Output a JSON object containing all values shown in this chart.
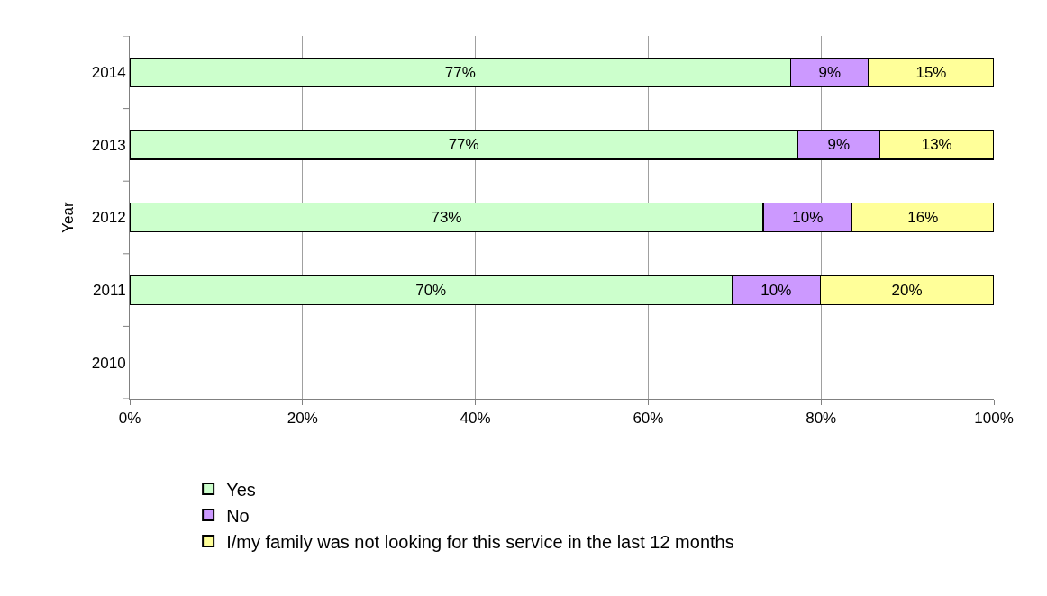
{
  "chart_data": {
    "type": "bar",
    "orientation": "horizontal",
    "stacked": true,
    "ylabel": "Year",
    "categories": [
      "2014",
      "2013",
      "2012",
      "2011",
      "2010"
    ],
    "series": [
      {
        "name": "Yes",
        "color": "#ccffcc",
        "values": [
          76.5,
          77.3,
          73.3,
          69.7,
          null
        ],
        "value_labels": [
          "77%",
          "77%",
          "73%",
          "70%",
          null
        ]
      },
      {
        "name": "No",
        "color": "#cc99ff",
        "values": [
          9.0,
          9.5,
          10.3,
          10.2,
          null
        ],
        "value_labels": [
          "9%",
          "9%",
          "10%",
          "10%",
          null
        ]
      },
      {
        "name": "I/my family was not looking for this service in the last 12 months",
        "color": "#ffff99",
        "values": [
          14.5,
          13.2,
          16.4,
          20.1,
          null
        ],
        "value_labels": [
          "15%",
          "13%",
          "16%",
          "20%",
          null
        ]
      }
    ],
    "xlim": [
      0,
      100
    ],
    "xticks": [
      {
        "value": 0,
        "label": "0%"
      },
      {
        "value": 20,
        "label": "20%"
      },
      {
        "value": 40,
        "label": "40%"
      },
      {
        "value": 60,
        "label": "60%"
      },
      {
        "value": 80,
        "label": "80%"
      },
      {
        "value": 100,
        "label": "100%"
      }
    ],
    "grid": "x",
    "legend": "bottom"
  }
}
